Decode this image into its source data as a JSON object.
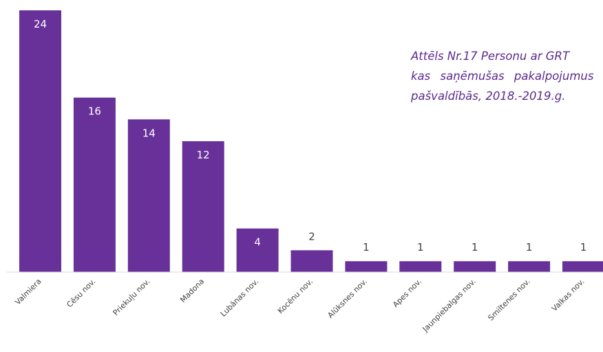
{
  "chart_data": {
    "type": "bar",
    "categories": [
      "Valmiera",
      "Cēsu nov.",
      "Priekuļu nov.",
      "Madona",
      "Lubānas nov.",
      "Kocēnu nov.",
      "Alūksnes nov.",
      "Apes nov.",
      "Jaunpiebalgas nov.",
      "Smiltenes nov.",
      "Valkas nov."
    ],
    "values": [
      24,
      16,
      14,
      12,
      4,
      2,
      1,
      1,
      1,
      1,
      1
    ],
    "data_labels": [
      "24",
      "16",
      "14",
      "12",
      "4",
      "2",
      "1",
      "1",
      "1",
      "1",
      "1"
    ],
    "title": "Attēls Nr.17 Personu ar GRT kas saņēmušas pakalpojumus pašvaldībās, 2018.-2019.g.",
    "title_lines": [
      "Attēls Nr.17 Personu ar GRT",
      "kas saņēmušas pakalpojumus",
      "pašvaldībās, 2018.-2019.g."
    ],
    "ylim": [
      0,
      24
    ],
    "grid": false,
    "legend": "none",
    "bar_color": "#68319a",
    "caption_color": "#5b2a8e",
    "label_inside_color": "#ffffff",
    "label_outside_color": "#404040"
  }
}
